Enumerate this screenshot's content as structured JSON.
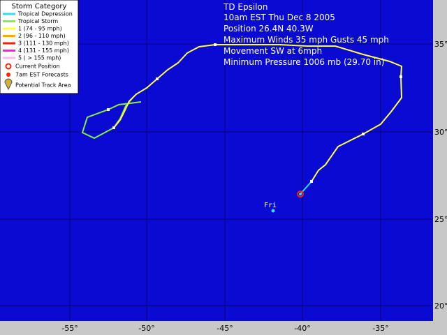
{
  "legend": {
    "title": "Storm Category",
    "categories": [
      "Tropical Depression",
      "Tropical Storm",
      "1 (74 - 95 mph)",
      "2 (96 - 110 mph)",
      "3 (111 - 130 mph)",
      "4 (131 - 155 mph)",
      "5 ( > 155 mph)"
    ],
    "colors": [
      "#33ddee",
      "#88ee44",
      "#ffff44",
      "#ffaa00",
      "#ff2200",
      "#ff22cc",
      "#ffbbee"
    ],
    "symbols": [
      "Current Position",
      "7am EST Forecasts",
      "Potential Track Area"
    ]
  },
  "info": [
    "TD Epsilon",
    "10am EST Thu Dec 8 2005",
    "Position 26.4N 40.3W",
    "Maximum Winds 35 mph Gusts 45 mph",
    "Movement SW at 6mph",
    "Minimum Pressure 1006 mb (29.70 in)"
  ],
  "forecast_label": "Fri",
  "lon_labels": [
    "-55°",
    "-50°",
    "-45°",
    "-40°",
    "-35°"
  ],
  "lat_labels": [
    "35°",
    "30°",
    "25°",
    "20°"
  ]
}
